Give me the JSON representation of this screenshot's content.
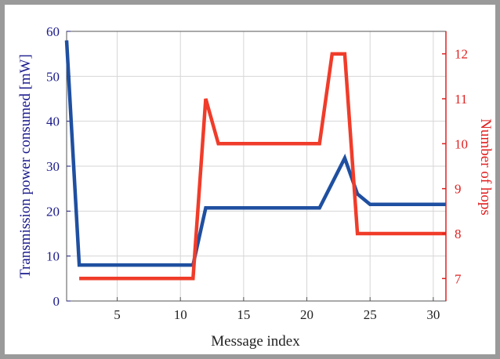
{
  "chart_data": {
    "type": "line",
    "xlabel": "Message index",
    "ylabel_left": "Transmission power consumed [mW]",
    "ylabel_right": "Number of hops",
    "xlim": [
      1,
      31
    ],
    "ylim_left": [
      0,
      60
    ],
    "ylim_right": [
      6.5,
      12.5
    ],
    "x_ticks": [
      5,
      10,
      15,
      20,
      25,
      30
    ],
    "y_ticks_left": [
      0,
      10,
      20,
      30,
      40,
      50,
      60
    ],
    "y_ticks_right": [
      7,
      8,
      9,
      10,
      11,
      12
    ],
    "grid": true,
    "colors": {
      "left_axis": "#1a1a8c",
      "right_axis": "#e02020",
      "x_axis": "#222222"
    },
    "series": [
      {
        "axis": "left",
        "color": "#1f4fa0",
        "x": [
          1,
          2,
          11,
          12,
          21,
          23,
          24,
          25,
          31
        ],
        "y": [
          58,
          8,
          8,
          20.7,
          20.7,
          31.8,
          23.8,
          21.5,
          21.5
        ]
      },
      {
        "axis": "right",
        "color": "#f03c2a",
        "x": [
          2,
          11,
          12,
          13,
          21,
          22,
          23,
          24,
          31
        ],
        "y": [
          7,
          7,
          11,
          10,
          10,
          12,
          12,
          8,
          8
        ]
      }
    ]
  }
}
